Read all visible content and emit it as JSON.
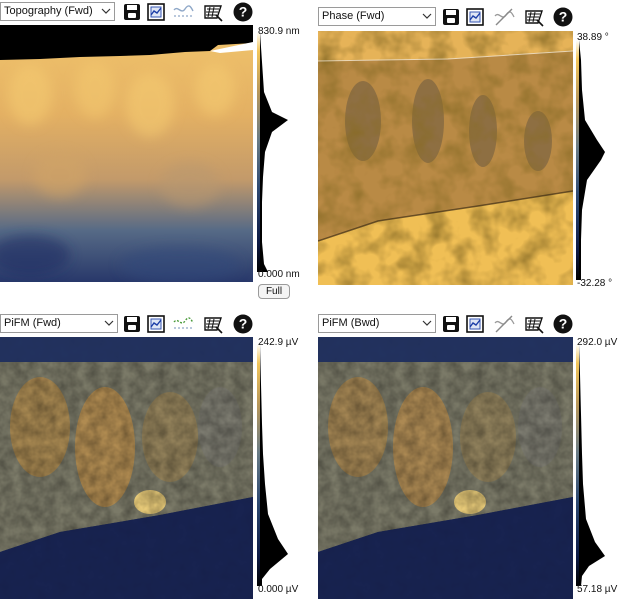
{
  "colors": {
    "map_low": "#0d1a45",
    "map_mid": "#4f6f86",
    "map_high": "#f3c65a",
    "toolbar_bg": "#ffffff",
    "border": "#9a9a9a"
  },
  "icons": {
    "save": "save-icon",
    "export": "chart-export-icon",
    "line_profile": "line-profile-icon",
    "flatten": "flatten-icon",
    "help": "help-icon"
  },
  "panels": [
    {
      "channel": "Topography (Fwd)",
      "max_label": "830.9 nm",
      "min_label": "0.000 nm",
      "full_button": "Full",
      "line_profile_state": "inactive"
    },
    {
      "channel": "Phase (Fwd)",
      "max_label": "38.89 °",
      "min_label": "-32.28 °",
      "line_profile_state": "disabled"
    },
    {
      "channel": "PiFM (Fwd)",
      "max_label": "242.9 µV",
      "min_label": "0.000 µV",
      "line_profile_state": "active"
    },
    {
      "channel": "PiFM (Bwd)",
      "max_label": "292.0 µV",
      "min_label": "57.18 µV",
      "line_profile_state": "disabled"
    }
  ]
}
